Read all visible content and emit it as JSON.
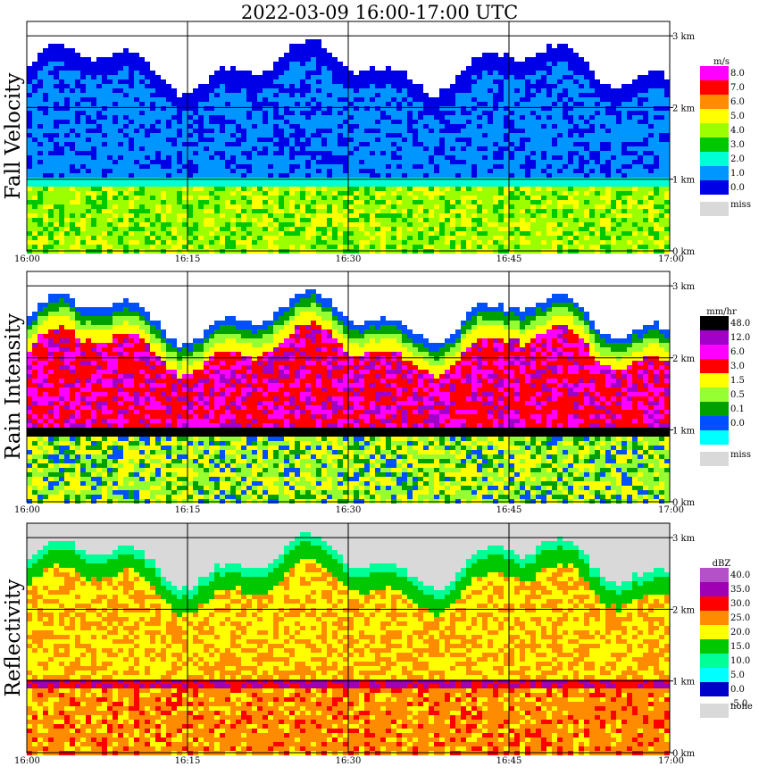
{
  "title": "2022-03-09   16:00-17:00 UTC",
  "x_ticks": [
    "16:00",
    "16:15",
    "16:30",
    "16:45",
    "17:00"
  ],
  "y_ticks": [
    "3 km",
    "2 km",
    "1 km",
    "0 km"
  ],
  "colors": {
    "missing": "#d9d9d9",
    "grid": "#000000"
  },
  "chart_data": [
    {
      "type": "heatmap",
      "title": "Fall Velocity",
      "legend_unit": "m/s",
      "legend_levels": [
        "8.0",
        "7.0",
        "6.0",
        "5.0",
        "4.0",
        "3.0",
        "2.0",
        "1.0",
        "0.0"
      ],
      "legend_colors": [
        "#ff00ff",
        "#ff0000",
        "#ff8c00",
        "#ffff00",
        "#9bff00",
        "#00c800",
        "#00ffd2",
        "#0096ff",
        "#0000e6"
      ],
      "legend_missing": "miss",
      "x_range": [
        "16:00",
        "17:00"
      ],
      "y_range_km": [
        0,
        3.2
      ],
      "melting_layer_km": 1.0,
      "echo_top_km": 2.6
    },
    {
      "type": "heatmap",
      "title": "Rain Intensity",
      "legend_unit": "mm/hr",
      "legend_levels": [
        "48.0",
        "12.0",
        "6.0",
        "3.0",
        "1.5",
        "0.5",
        "0.1",
        "0.0"
      ],
      "legend_colors": [
        "#000000",
        "#a000c8",
        "#ff00ff",
        "#ff0000",
        "#ffff00",
        "#96ff32",
        "#00a000",
        "#0050ff",
        "#00ffff"
      ],
      "legend_missing": "miss",
      "x_range": [
        "16:00",
        "17:00"
      ],
      "y_range_km": [
        0,
        3.2
      ],
      "melting_layer_km": 1.0,
      "echo_top_km": 2.6
    },
    {
      "type": "heatmap",
      "title": "Reflectivity",
      "legend_unit": "dBZ",
      "legend_levels": [
        "40.0",
        "35.0",
        "30.0",
        "25.0",
        "20.0",
        "15.0",
        "10.0",
        "5.0",
        "0.0",
        "-5.0"
      ],
      "legend_colors": [
        "#b450c8",
        "#a000b4",
        "#ff0000",
        "#ff8c00",
        "#ffff00",
        "#00c800",
        "#00ff96",
        "#00ffff",
        "#0000c8"
      ],
      "legend_missing": "none",
      "x_range": [
        "16:00",
        "17:00"
      ],
      "y_range_km": [
        0,
        3.2
      ],
      "melting_layer_km": 1.0,
      "echo_top_km": 2.7
    }
  ]
}
